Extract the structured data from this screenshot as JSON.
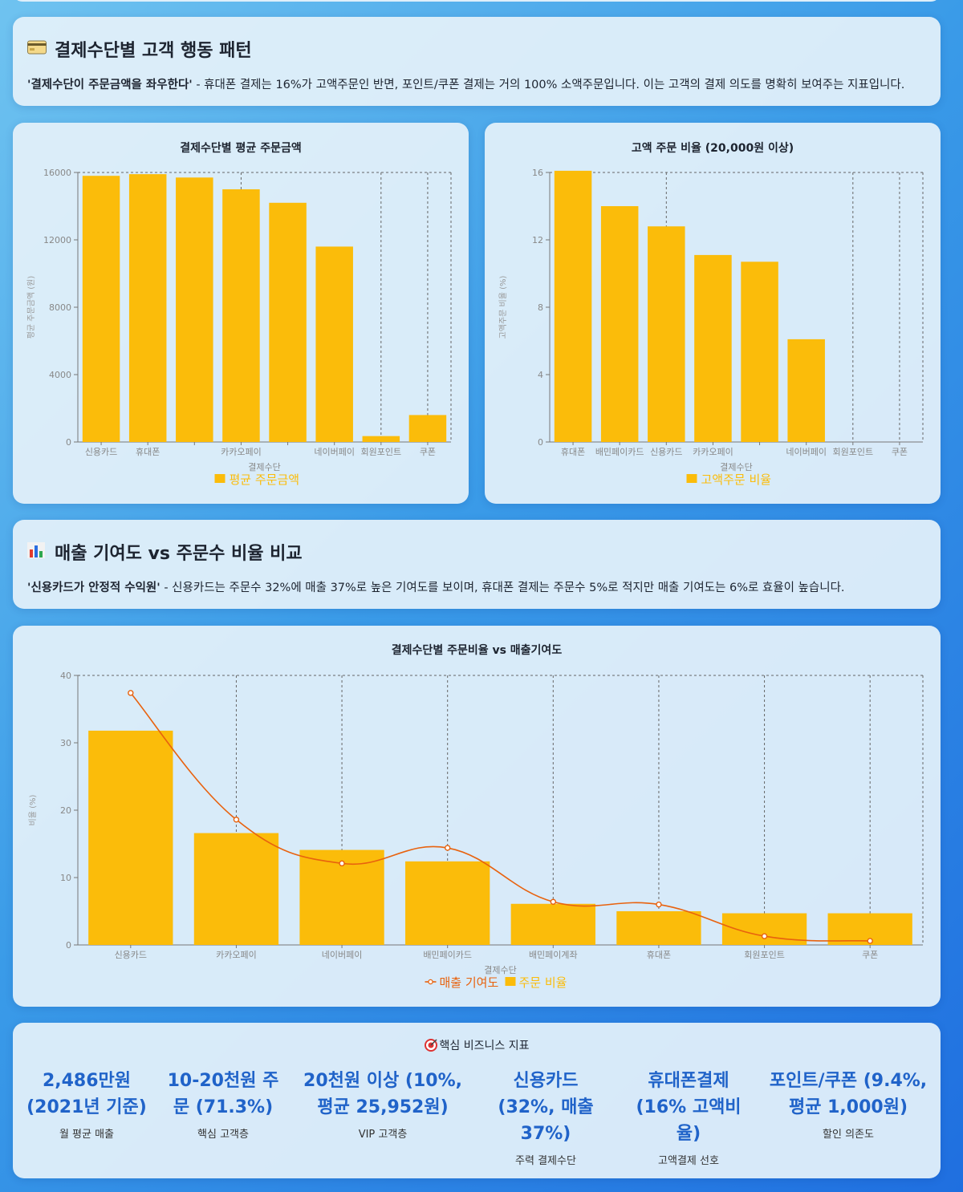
{
  "section1": {
    "icon": "credit-card-icon",
    "title": "결제수단별 고객 행동 패턴",
    "desc_bold": "'결제수단이 주문금액을 좌우한다'",
    "desc_rest": " - 휴대폰 결제는 16%가 고액주문인 반면, 포인트/쿠폰 결제는 거의 100% 소액주문입니다. 이는 고객의 결제 의도를 명확히 보여주는 지표입니다."
  },
  "section2": {
    "icon": "bar-chart-icon",
    "title": "매출 기여도 vs 주문수 비율 비교",
    "desc_bold": "'신용카드가 안정적 수익원'",
    "desc_rest": " - 신용카드는 주문수 32%에 매출 37%로 높은 기여도를 보이며, 휴대폰 결제는 주문수 5%로 적지만 매출 기여도는 6%로 효율이 높습니다."
  },
  "chart_data": [
    {
      "type": "bar",
      "title": "결제수단별 평균 주문금액",
      "xlabel": "결제수단",
      "ylabel": "평균 주문금액 (원)",
      "ylim": [
        0,
        16000
      ],
      "yticks": [
        0,
        4000,
        8000,
        12000,
        16000
      ],
      "tick_labels": [
        "신용카드",
        "휴대폰",
        "",
        "카카오페이",
        "",
        "네이버페이",
        "회원포인트",
        "쿠폰"
      ],
      "values": [
        15800,
        15900,
        15700,
        15000,
        14200,
        11600,
        350,
        1600
      ],
      "legend": "평균 주문금액",
      "color": "#fbbc0a"
    },
    {
      "type": "bar",
      "title": "고액 주문 비율 (20,000원 이상)",
      "xlabel": "결제수단",
      "ylabel": "고액주문 비율 (%)",
      "ylim": [
        0,
        16
      ],
      "yticks": [
        0,
        4,
        8,
        12,
        16
      ],
      "tick_labels": [
        "휴대폰",
        "배민페이카드",
        "신용카드",
        "카카오페이",
        "",
        "네이버페이",
        "회원포인트",
        "쿠폰"
      ],
      "values": [
        16.1,
        14.0,
        12.8,
        11.1,
        10.7,
        6.1,
        0,
        0
      ],
      "legend": "고액주문 비율",
      "color": "#fbbc0a"
    },
    {
      "type": "bar",
      "title": "결제수단별 주문비율 vs 매출기여도",
      "xlabel": "결제수단",
      "ylabel": "비율 (%)",
      "ylim": [
        0,
        40
      ],
      "yticks": [
        0,
        10,
        20,
        30,
        40
      ],
      "categories": [
        "신용카드",
        "카카오페이",
        "네이버페이",
        "배민페이카드",
        "배민페이계좌",
        "휴대폰",
        "회원포인트",
        "쿠폰"
      ],
      "series": [
        {
          "name": "주문 비율",
          "type": "bar",
          "color": "#fbbc0a",
          "values": [
            31.8,
            16.6,
            14.1,
            12.4,
            6.1,
            5.0,
            4.7,
            4.7
          ]
        },
        {
          "name": "매출 기여도",
          "type": "line",
          "color": "#e8620e",
          "values": [
            37.4,
            18.6,
            12.1,
            14.4,
            6.4,
            6.0,
            1.3,
            0.6
          ]
        }
      ]
    }
  ],
  "kpi": {
    "icon": "target-icon",
    "title": "핵심 비즈니스 지표",
    "items": [
      {
        "value_lines": [
          "2,486만원",
          "(2021년 기준)"
        ],
        "label": "월 평균 매출"
      },
      {
        "value_lines": [
          "10-20천원 주",
          "문 (71.3%)"
        ],
        "label": "핵심 고객층"
      },
      {
        "value_lines": [
          "20천원 이상 (10%,",
          "평균 25,952원)"
        ],
        "label": "VIP 고객층"
      },
      {
        "value_lines": [
          "신용카드",
          "(32%, 매출",
          "37%)"
        ],
        "label": "주력 결제수단"
      },
      {
        "value_lines": [
          "휴대폰결제",
          "(16% 고액비",
          "율)"
        ],
        "label": "고액결제 선호"
      },
      {
        "value_lines": [
          "포인트/쿠폰 (9.4%,",
          "평균 1,000원)"
        ],
        "label": "할인 의존도"
      }
    ]
  }
}
